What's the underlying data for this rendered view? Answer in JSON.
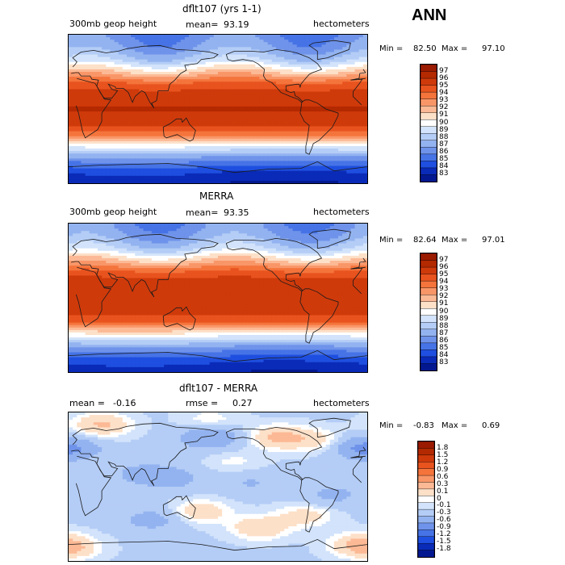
{
  "season": "ANN",
  "panels": [
    {
      "id": "model",
      "title": "dflt107 (yrs 1-1)",
      "left_label": "300mb geop height",
      "mean_label": "mean=",
      "mean_value": "93.19",
      "units": "hectometers",
      "min_label": "Min =",
      "min_value": "82.50",
      "max_label": "Max =",
      "max_value": "97.10",
      "colorbar_labels": [
        "97",
        "96",
        "95",
        "94",
        "93",
        "92",
        "91",
        "90",
        "89",
        "88",
        "87",
        "86",
        "85",
        "84",
        "83"
      ],
      "colors": [
        "#9a1b00",
        "#b32900",
        "#cf3a0b",
        "#e8531e",
        "#f4743c",
        "#f99668",
        "#fcb995",
        "#fde0c8",
        "#ffffff",
        "#d2e3fb",
        "#b4cdf6",
        "#93b3f0",
        "#6f93ea",
        "#4673e6",
        "#1f4fe0",
        "#0a2bb8",
        "#031890"
      ]
    },
    {
      "id": "obs",
      "title": "MERRA",
      "left_label": "300mb geop height",
      "mean_label": "mean=",
      "mean_value": "93.35",
      "units": "hectometers",
      "min_label": "Min =",
      "min_value": "82.64",
      "max_label": "Max =",
      "max_value": "97.01",
      "colorbar_labels": [
        "97",
        "96",
        "95",
        "94",
        "93",
        "92",
        "91",
        "90",
        "89",
        "88",
        "87",
        "86",
        "85",
        "84",
        "83"
      ],
      "colors": [
        "#9a1b00",
        "#b32900",
        "#cf3a0b",
        "#e8531e",
        "#f4743c",
        "#f99668",
        "#fcb995",
        "#fde0c8",
        "#ffffff",
        "#d2e3fb",
        "#b4cdf6",
        "#93b3f0",
        "#6f93ea",
        "#4673e6",
        "#1f4fe0",
        "#0a2bb8",
        "#031890"
      ]
    },
    {
      "id": "diff",
      "title": "dflt107 - MERRA",
      "mean_label": "mean =",
      "mean_value": "-0.16",
      "rmse_label": "rmse =",
      "rmse_value": "0.27",
      "units": "hectometers",
      "min_label": "Min =",
      "min_value": "-0.83",
      "max_label": "Max =",
      "max_value": "0.69",
      "colorbar_labels": [
        "1.8",
        "1.5",
        "1.2",
        "0.9",
        "0.6",
        "0.3",
        "0.1",
        "0",
        "-0.1",
        "-0.3",
        "-0.6",
        "-0.9",
        "-1.2",
        "-1.5",
        "-1.8"
      ],
      "colors": [
        "#9a1b00",
        "#b32900",
        "#cf3a0b",
        "#e8531e",
        "#f4743c",
        "#f99668",
        "#fcb995",
        "#fde0c8",
        "#ffffff",
        "#d2e3fb",
        "#b4cdf6",
        "#93b3f0",
        "#6f93ea",
        "#4673e6",
        "#1f4fe0",
        "#0a2bb8",
        "#031890"
      ]
    }
  ],
  "chart_data": [
    {
      "type": "heatmap",
      "title": "dflt107 (yrs 1-1)",
      "variable": "300mb geop height",
      "units": "hectometers",
      "mean": 93.19,
      "min": 82.5,
      "max": 97.1,
      "levels": [
        83,
        84,
        85,
        86,
        87,
        88,
        89,
        90,
        91,
        92,
        93,
        94,
        95,
        96,
        97
      ],
      "lat_range": [
        -90,
        90
      ],
      "lon_range": [
        0,
        360
      ],
      "zonal_mean_profile": {
        "lat": [
          -90,
          -75,
          -60,
          -45,
          -30,
          -15,
          0,
          15,
          30,
          45,
          60,
          75,
          90
        ],
        "value": [
          83.0,
          84.2,
          86.6,
          90.2,
          94.8,
          96.6,
          97.1,
          96.7,
          95.4,
          92.0,
          88.6,
          87.0,
          86.3
        ]
      }
    },
    {
      "type": "heatmap",
      "title": "MERRA",
      "variable": "300mb geop height",
      "units": "hectometers",
      "mean": 93.35,
      "min": 82.64,
      "max": 97.01,
      "levels": [
        83,
        84,
        85,
        86,
        87,
        88,
        89,
        90,
        91,
        92,
        93,
        94,
        95,
        96,
        97
      ],
      "lat_range": [
        -90,
        90
      ],
      "lon_range": [
        0,
        360
      ],
      "zonal_mean_profile": {
        "lat": [
          -90,
          -75,
          -60,
          -45,
          -30,
          -15,
          0,
          15,
          30,
          45,
          60,
          75,
          90
        ],
        "value": [
          83.1,
          84.4,
          86.8,
          90.4,
          95.0,
          96.6,
          97.0,
          96.7,
          95.5,
          92.2,
          88.8,
          87.2,
          86.5
        ]
      }
    },
    {
      "type": "heatmap",
      "title": "dflt107 - MERRA",
      "units": "hectometers",
      "mean": -0.16,
      "rmse": 0.27,
      "min": -0.83,
      "max": 0.69,
      "levels": [
        -1.8,
        -1.5,
        -1.2,
        -0.9,
        -0.6,
        -0.3,
        -0.1,
        0,
        0.1,
        0.3,
        0.6,
        0.9,
        1.2,
        1.5,
        1.8
      ],
      "lat_range": [
        -90,
        90
      ],
      "lon_range": [
        0,
        360
      ],
      "anomalies": [
        {
          "lon": 40,
          "lat": 75,
          "value": 0.45
        },
        {
          "lon": 170,
          "lat": 80,
          "value": 0.2
        },
        {
          "lon": 255,
          "lat": 60,
          "value": 0.5
        },
        {
          "lon": 310,
          "lat": 55,
          "value": 0.35
        },
        {
          "lon": 5,
          "lat": 45,
          "value": -0.4
        },
        {
          "lon": 170,
          "lat": 60,
          "value": -0.5
        },
        {
          "lon": 340,
          "lat": 50,
          "value": -0.35
        },
        {
          "lon": 200,
          "lat": 30,
          "value": 0.15
        },
        {
          "lon": 90,
          "lat": 15,
          "value": -0.3
        },
        {
          "lon": 130,
          "lat": 10,
          "value": -0.25
        },
        {
          "lon": 220,
          "lat": 5,
          "value": -0.2
        },
        {
          "lon": 160,
          "lat": -30,
          "value": 0.35
        },
        {
          "lon": 230,
          "lat": -50,
          "value": 0.4
        },
        {
          "lon": 285,
          "lat": -35,
          "value": 0.3
        },
        {
          "lon": 5,
          "lat": -75,
          "value": 0.25
        },
        {
          "lon": 350,
          "lat": -70,
          "value": 0.4
        },
        {
          "lon": 100,
          "lat": -40,
          "value": -0.3
        },
        {
          "lon": 320,
          "lat": -10,
          "value": -0.25
        }
      ]
    }
  ]
}
